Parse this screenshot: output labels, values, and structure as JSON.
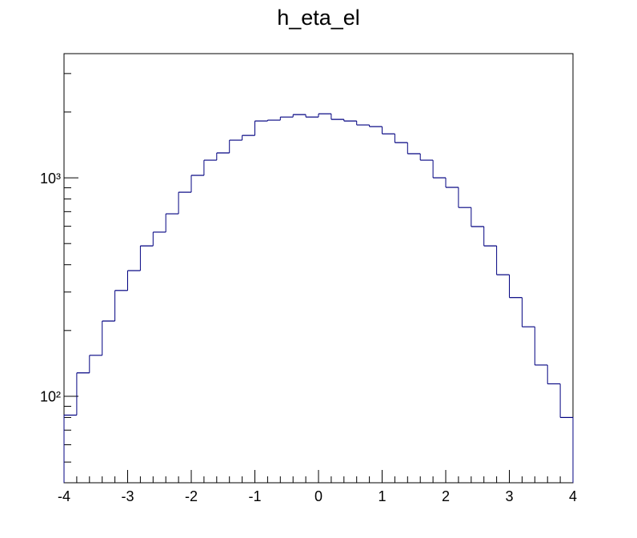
{
  "chart_data": {
    "type": "histogram",
    "title": "h_eta_el",
    "color": "#000080",
    "log_y": true,
    "bins": [
      -4.0,
      -3.8,
      -3.6,
      -3.4,
      -3.2,
      -3.0,
      -2.8,
      -2.6,
      -2.4,
      -2.2,
      -2.0,
      -1.8,
      -1.6,
      -1.4,
      -1.2,
      -1.0,
      -0.8,
      -0.6,
      -0.4,
      -0.2,
      0.0,
      0.2,
      0.4,
      0.6,
      0.8,
      1.0,
      1.2,
      1.4,
      1.6,
      1.8,
      2.0,
      2.2,
      2.4,
      2.6,
      2.8,
      3.0,
      3.2,
      3.4,
      3.6,
      3.8,
      4.0
    ],
    "values": [
      82,
      128,
      154,
      221,
      305,
      376,
      488,
      564,
      684,
      859,
      1026,
      1204,
      1300,
      1487,
      1563,
      1820,
      1836,
      1897,
      1946,
      1897,
      1963,
      1851,
      1820,
      1745,
      1715,
      1589,
      1449,
      1289,
      1204,
      1000,
      904,
      731,
      598,
      488,
      360,
      283,
      208,
      139,
      114,
      80
    ],
    "xlim": [
      -4,
      4
    ],
    "xticks": [
      -4,
      -3,
      -2,
      -1,
      0,
      1,
      2,
      3,
      4
    ],
    "ylim": [
      40.2,
      3700
    ],
    "yticks": [
      {
        "value": 100,
        "label": "10²"
      },
      {
        "value": 1000,
        "label": "10³"
      }
    ],
    "yminorticks": [
      50,
      60,
      70,
      80,
      90,
      200,
      300,
      400,
      500,
      600,
      700,
      800,
      900,
      2000,
      3000
    ]
  }
}
